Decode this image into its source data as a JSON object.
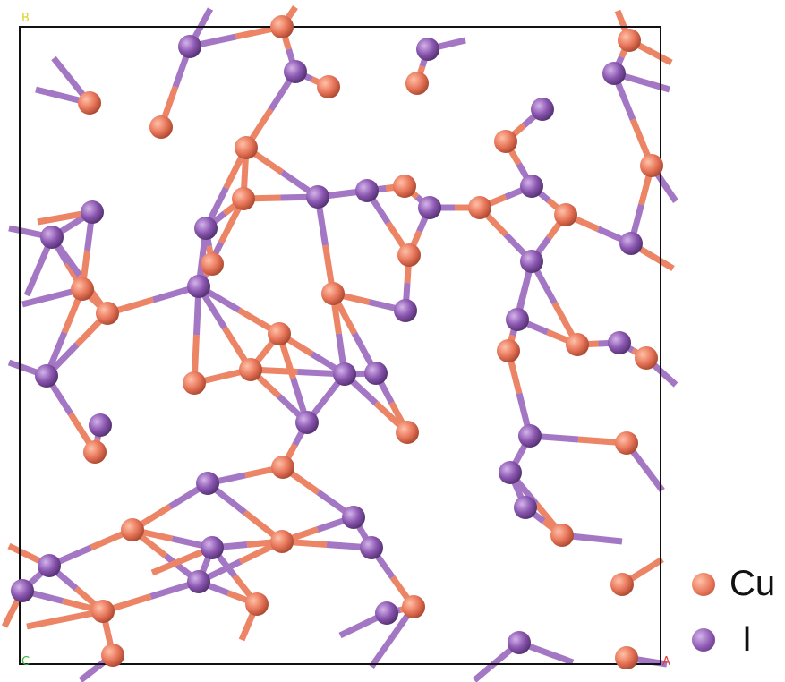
{
  "figure": {
    "axis_labels": {
      "top_left": "B",
      "bottom_left": "C",
      "bottom_right": "A"
    },
    "colors": {
      "cu": "#e8765a",
      "cu_bond": "#ec8466",
      "iodine": "#8a56b0",
      "iodine_bond": "#a477c4",
      "cell_border": "#111111",
      "label_b": "#d9d22a",
      "label_c": "#3ab53a",
      "label_a": "#e33b3b"
    }
  },
  "legend": {
    "items": [
      {
        "label": "Cu",
        "color": "#e8765a"
      },
      {
        "label": "I",
        "color": "#8a56b0"
      }
    ]
  }
}
